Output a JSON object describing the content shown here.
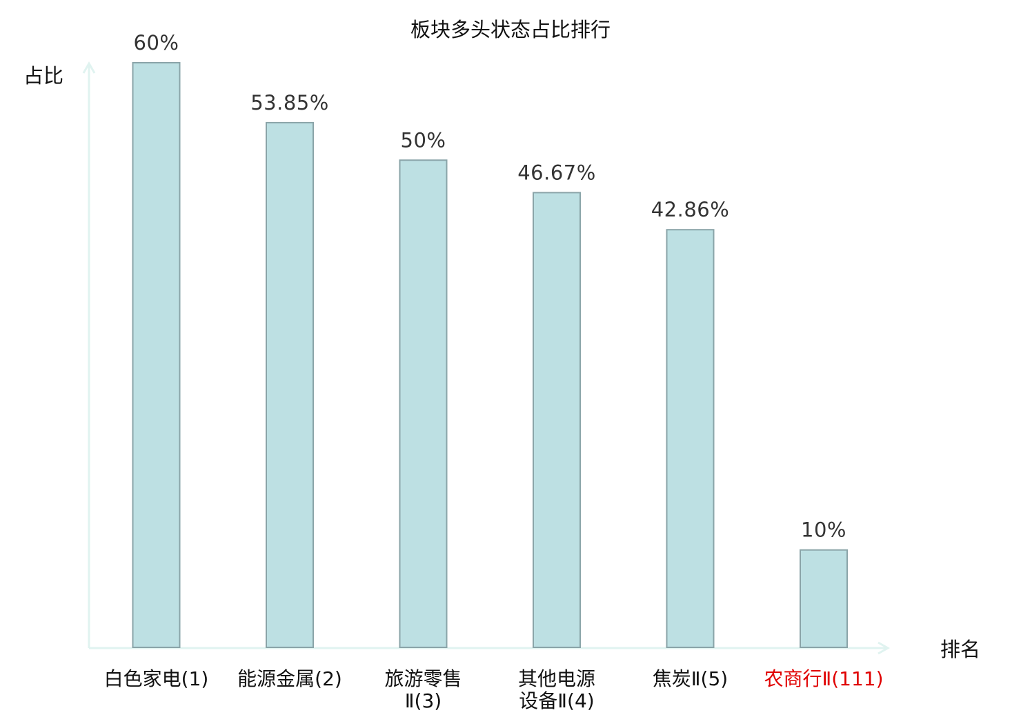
{
  "chart_data": {
    "type": "bar",
    "title": "板块多头状态占比排行",
    "xlabel": "排名",
    "ylabel": "占比",
    "categories": [
      [
        "白色家电(1)"
      ],
      [
        "能源金属(2)"
      ],
      [
        "旅游零售",
        "Ⅱ(3)"
      ],
      [
        "其他电源",
        "设备Ⅱ(4)"
      ],
      [
        "焦炭Ⅱ(5)"
      ],
      [
        "农商行Ⅱ(111)"
      ]
    ],
    "values": [
      60,
      53.85,
      50,
      46.67,
      42.86,
      10
    ],
    "value_labels": [
      "60%",
      "53.85%",
      "50%",
      "46.67%",
      "42.86%",
      "10%"
    ],
    "category_colors": [
      "#111111",
      "#111111",
      "#111111",
      "#111111",
      "#111111",
      "#e00000"
    ],
    "ylim": [
      0,
      60
    ],
    "grid": false,
    "legend": "none",
    "colors": {
      "bar_fill": "#bde0e3",
      "bar_stroke": "#8aa4a8",
      "axis": "#e0f3f0"
    }
  }
}
